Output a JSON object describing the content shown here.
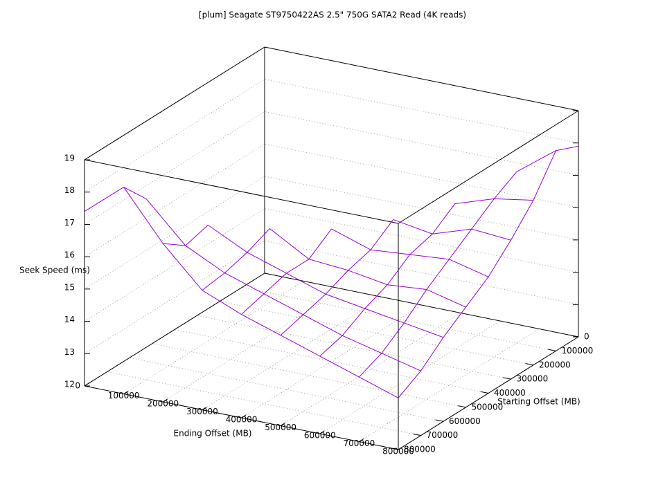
{
  "chart_data": {
    "type": "surface3d",
    "title": "[plum] Seagate ST9750422AS 2.5\" 750G SATA2 Read (4K reads)",
    "xlabel": "Ending Offset (MB)",
    "ylabel": "Starting Offset (MB)",
    "zlabel": "Seek Speed (ms)",
    "x": [
      0,
      100000,
      200000,
      300000,
      400000,
      500000,
      600000,
      700000,
      800000
    ],
    "y": [
      0,
      100000,
      200000,
      300000,
      400000,
      500000,
      600000,
      700000,
      800000
    ],
    "z": [
      [
        null,
        null,
        null,
        null,
        null,
        null,
        null,
        null,
        17.9
      ],
      [
        null,
        null,
        null,
        null,
        null,
        null,
        null,
        17.3,
        18.2
      ],
      [
        null,
        null,
        null,
        null,
        null,
        null,
        16.5,
        16.9,
        17.1
      ],
      [
        null,
        null,
        null,
        null,
        null,
        16.2,
        16.0,
        16.4,
        16.3
      ],
      [
        null,
        null,
        null,
        null,
        16.1,
        15.7,
        15.8,
        15.9,
        15.6
      ],
      [
        null,
        null,
        null,
        16.3,
        15.6,
        15.5,
        15.3,
        15.4,
        15.1
      ],
      [
        null,
        null,
        16.6,
        16.0,
        15.6,
        15.2,
        15.0,
        14.8,
        14.6
      ],
      [
        null,
        17.6,
        16.4,
        15.8,
        15.4,
        15.0,
        14.6,
        14.3,
        14.0
      ],
      [
        17.4,
        18.4,
        16.9,
        15.7,
        15.2,
        14.8,
        14.4,
        14.0,
        13.6
      ]
    ],
    "color": "#9400d3",
    "xlim": [
      0,
      800000
    ],
    "ylim": [
      0,
      800000
    ],
    "zlim": [
      12,
      19
    ],
    "xticks": [
      0,
      100000,
      200000,
      300000,
      400000,
      500000,
      600000,
      700000,
      800000
    ],
    "yticks": [
      0,
      100000,
      200000,
      300000,
      400000,
      500000,
      600000,
      700000,
      800000
    ],
    "zticks": [
      12,
      13,
      14,
      15,
      16,
      17,
      18,
      19
    ],
    "grid": true
  }
}
